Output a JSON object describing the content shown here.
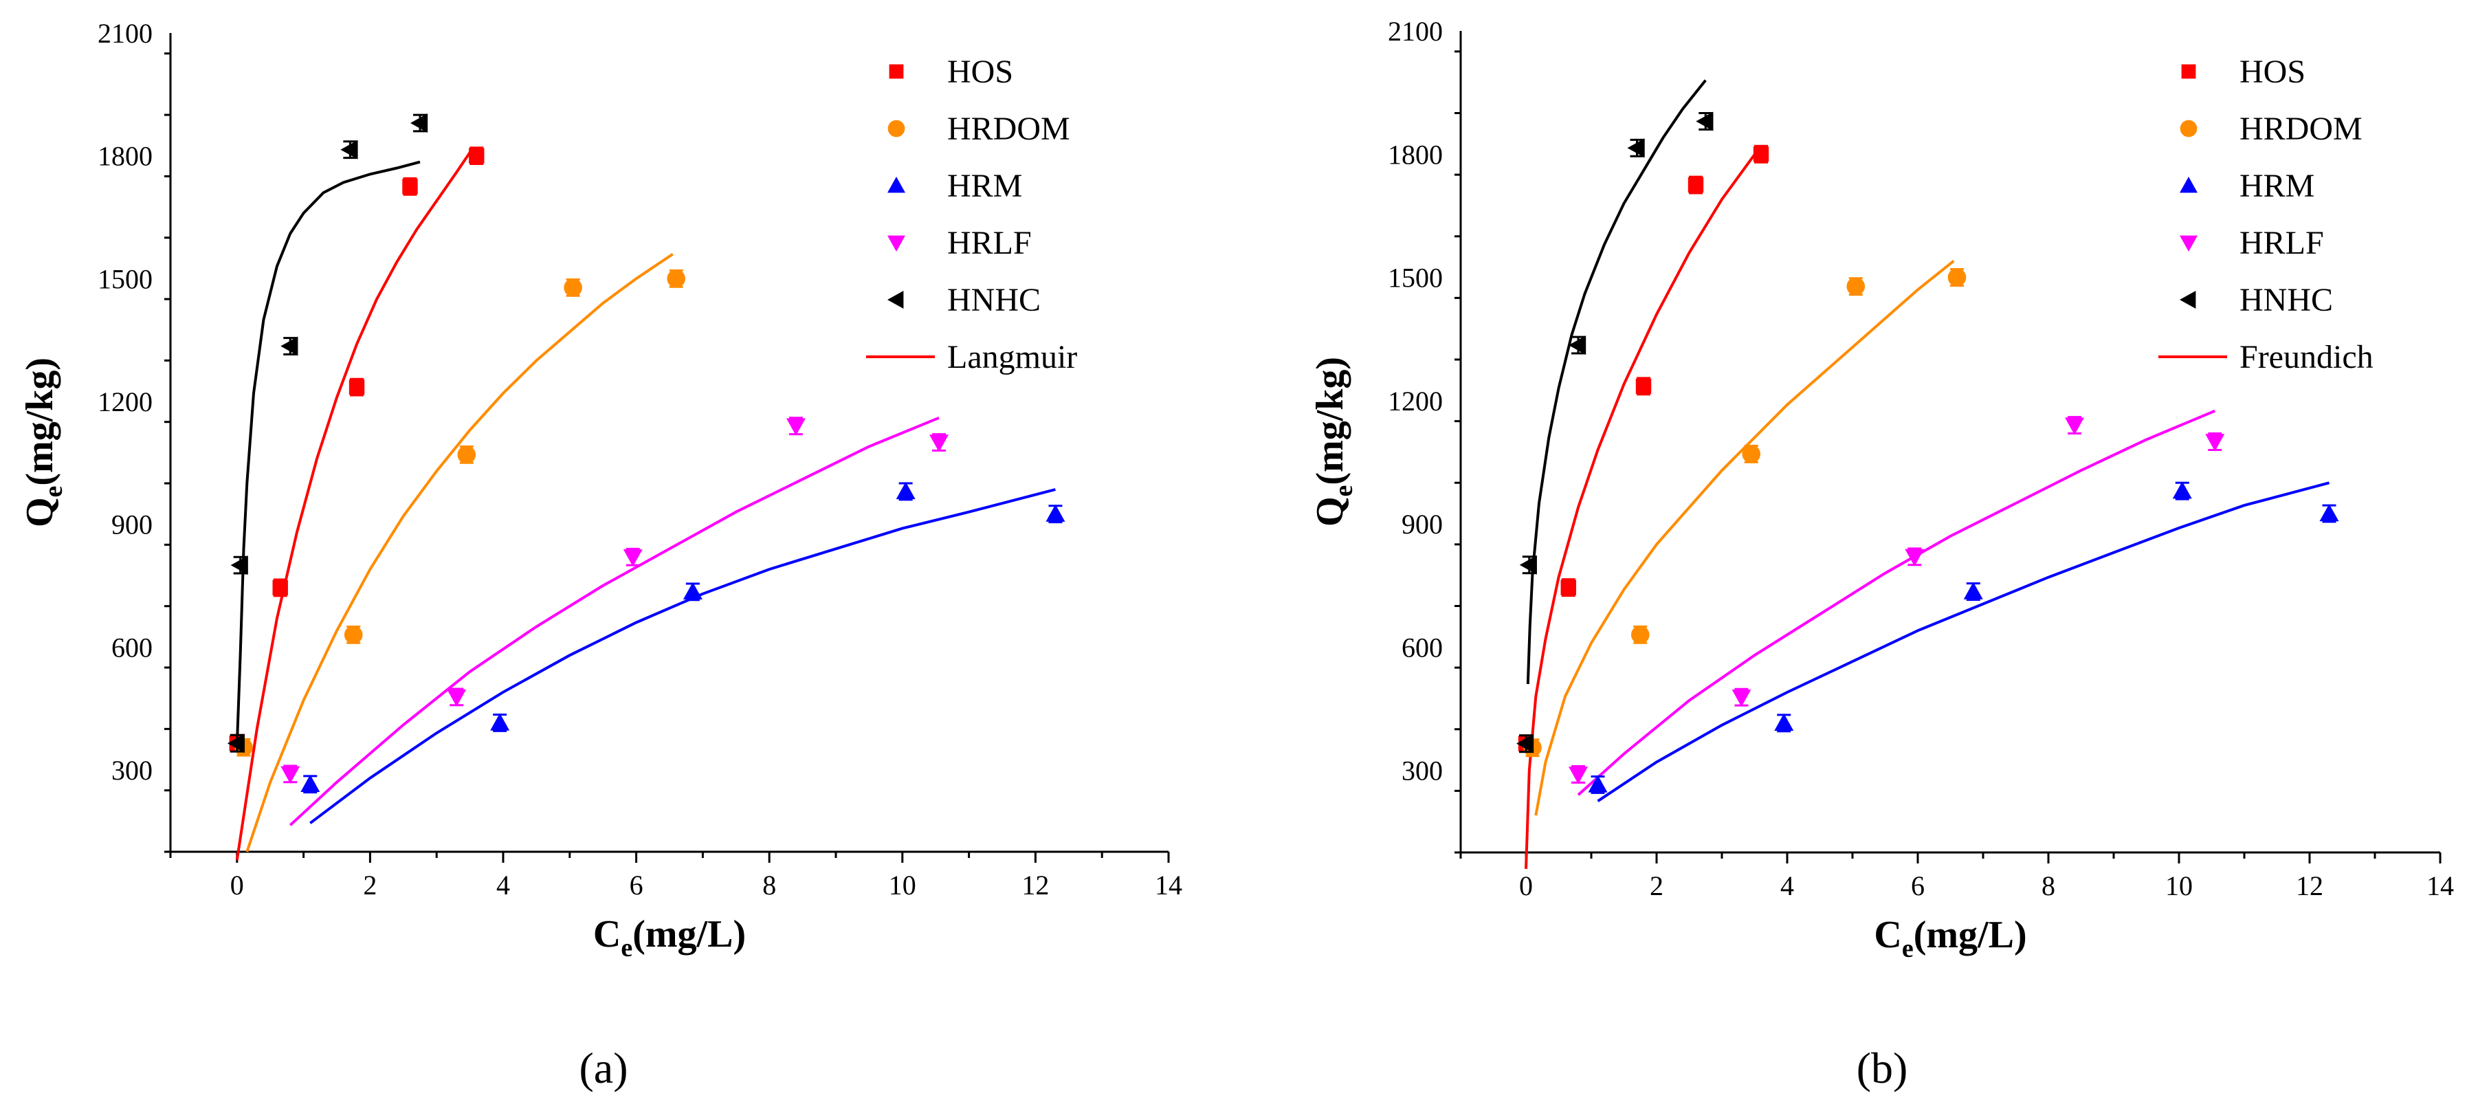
{
  "panels": [
    {
      "caption": "(a)",
      "fit_label": "Langmuir",
      "fit_color": "#ff0000"
    },
    {
      "caption": "(b)",
      "fit_label": "Freundich",
      "fit_color": "#ff0000"
    }
  ],
  "chart_data": [
    {
      "type": "scatter",
      "title": "",
      "xlabel_main": "C",
      "xlabel_sub": "e",
      "xlabel_unit": "(mg/L)",
      "ylabel_main": "Q",
      "ylabel_sub": "e",
      "ylabel_unit": "(mg/kg)",
      "xlim": [
        -1,
        14
      ],
      "ylim": [
        100,
        2100
      ],
      "xticks": [
        0,
        2,
        4,
        6,
        8,
        10,
        12,
        14
      ],
      "yticks": [
        300,
        600,
        900,
        1200,
        1500,
        1800,
        2100
      ],
      "legend_position": "top-right",
      "series": [
        {
          "name": "HOS",
          "color": "#ff0000",
          "marker": "square",
          "x": [
            0.0,
            0.65,
            1.8,
            2.6,
            3.6
          ],
          "y": [
            365,
            745,
            1235,
            1725,
            1800
          ],
          "err": [
            20,
            20,
            20,
            20,
            20
          ],
          "fit_x": [
            0.0,
            0.3,
            0.6,
            0.9,
            1.2,
            1.5,
            1.8,
            2.1,
            2.4,
            2.7,
            3.0,
            3.3,
            3.55
          ],
          "fit_y": [
            80,
            400,
            670,
            880,
            1060,
            1210,
            1340,
            1450,
            1540,
            1620,
            1690,
            1760,
            1820
          ]
        },
        {
          "name": "HRDOM",
          "color": "#ff8c00",
          "marker": "circle",
          "x": [
            0.1,
            1.75,
            3.45,
            5.05,
            6.6
          ],
          "y": [
            355,
            630,
            1070,
            1478,
            1500
          ],
          "err": [
            20,
            20,
            20,
            20,
            20
          ],
          "fit_x": [
            0.15,
            0.5,
            1.0,
            1.5,
            2.0,
            2.5,
            3.0,
            3.5,
            4.0,
            4.5,
            5.0,
            5.5,
            6.0,
            6.55
          ],
          "fit_y": [
            100,
            270,
            470,
            640,
            790,
            920,
            1030,
            1130,
            1220,
            1300,
            1370,
            1440,
            1500,
            1560
          ]
        },
        {
          "name": "HRM",
          "color": "#0000ff",
          "marker": "triangle-up",
          "x": [
            1.1,
            3.95,
            6.85,
            10.05,
            12.3
          ],
          "y": [
            265,
            415,
            735,
            980,
            925
          ],
          "err": [
            20,
            20,
            20,
            20,
            20
          ],
          "fit_x": [
            1.1,
            2.0,
            3.0,
            4.0,
            5.0,
            6.0,
            7.0,
            8.0,
            9.0,
            10.0,
            11.0,
            12.3
          ],
          "fit_y": [
            170,
            280,
            390,
            490,
            580,
            660,
            730,
            790,
            840,
            890,
            930,
            985
          ]
        },
        {
          "name": "HRLF",
          "color": "#ff00ff",
          "marker": "triangle-down",
          "x": [
            0.8,
            3.3,
            5.95,
            8.4,
            10.55
          ],
          "y": [
            290,
            478,
            820,
            1140,
            1100
          ],
          "err": [
            20,
            20,
            20,
            20,
            20
          ],
          "fit_x": [
            0.8,
            1.5,
            2.5,
            3.5,
            4.5,
            5.5,
            6.5,
            7.5,
            8.5,
            9.5,
            10.55
          ],
          "fit_y": [
            165,
            270,
            410,
            540,
            650,
            750,
            840,
            930,
            1010,
            1090,
            1160
          ]
        },
        {
          "name": "HNHC",
          "color": "#000000",
          "marker": "triangle-left",
          "x": [
            0.0,
            0.05,
            0.8,
            1.7,
            2.75
          ],
          "y": [
            365,
            800,
            1335,
            1815,
            1880
          ],
          "err": [
            20,
            20,
            20,
            20,
            20
          ],
          "fit_x": [
            0.0,
            0.05,
            0.1,
            0.15,
            0.25,
            0.4,
            0.6,
            0.8,
            1.0,
            1.3,
            1.6,
            2.0,
            2.4,
            2.75
          ],
          "fit_y": [
            360,
            580,
            840,
            1000,
            1220,
            1400,
            1530,
            1610,
            1660,
            1710,
            1735,
            1755,
            1770,
            1785
          ]
        }
      ]
    },
    {
      "type": "scatter",
      "title": "",
      "xlabel_main": "C",
      "xlabel_sub": "e",
      "xlabel_unit": "(mg/L)",
      "ylabel_main": "Q",
      "ylabel_sub": "e",
      "ylabel_unit": "(mg/kg)",
      "xlim": [
        -1,
        14
      ],
      "ylim": [
        100,
        2100
      ],
      "xticks": [
        0,
        2,
        4,
        6,
        8,
        10,
        12,
        14
      ],
      "yticks": [
        300,
        600,
        900,
        1200,
        1500,
        1800,
        2100
      ],
      "legend_position": "top-right",
      "series": [
        {
          "name": "HOS",
          "color": "#ff0000",
          "marker": "square",
          "x": [
            0.0,
            0.65,
            1.8,
            2.6,
            3.6
          ],
          "y": [
            365,
            745,
            1235,
            1725,
            1800
          ],
          "err": [
            20,
            20,
            20,
            20,
            20
          ],
          "fit_x": [
            0.0,
            0.05,
            0.15,
            0.3,
            0.5,
            0.8,
            1.1,
            1.5,
            2.0,
            2.5,
            3.0,
            3.55
          ],
          "fit_y": [
            60,
            300,
            480,
            620,
            770,
            940,
            1080,
            1240,
            1410,
            1560,
            1690,
            1810
          ]
        },
        {
          "name": "HRDOM",
          "color": "#ff8c00",
          "marker": "circle",
          "x": [
            0.1,
            1.75,
            3.45,
            5.05,
            6.6
          ],
          "y": [
            355,
            630,
            1070,
            1478,
            1500
          ],
          "err": [
            20,
            20,
            20,
            20,
            20
          ],
          "fit_x": [
            0.15,
            0.3,
            0.6,
            1.0,
            1.5,
            2.0,
            2.5,
            3.0,
            3.5,
            4.0,
            4.5,
            5.0,
            5.5,
            6.0,
            6.55
          ],
          "fit_y": [
            190,
            320,
            480,
            610,
            740,
            850,
            940,
            1030,
            1110,
            1190,
            1260,
            1330,
            1400,
            1470,
            1540
          ]
        },
        {
          "name": "HRM",
          "color": "#0000ff",
          "marker": "triangle-up",
          "x": [
            1.1,
            3.95,
            6.85,
            10.05,
            12.3
          ],
          "y": [
            265,
            415,
            735,
            980,
            925
          ],
          "err": [
            20,
            20,
            20,
            20,
            20
          ],
          "fit_x": [
            1.1,
            2.0,
            3.0,
            4.0,
            5.0,
            6.0,
            7.0,
            8.0,
            9.0,
            10.0,
            11.0,
            12.3
          ],
          "fit_y": [
            225,
            320,
            410,
            490,
            565,
            640,
            705,
            770,
            830,
            890,
            945,
            1000
          ]
        },
        {
          "name": "HRLF",
          "color": "#ff00ff",
          "marker": "triangle-down",
          "x": [
            0.8,
            3.3,
            5.95,
            8.4,
            10.55
          ],
          "y": [
            290,
            478,
            820,
            1140,
            1100
          ],
          "err": [
            20,
            20,
            20,
            20,
            20
          ],
          "fit_x": [
            0.8,
            1.5,
            2.5,
            3.5,
            4.5,
            5.5,
            6.5,
            7.5,
            8.5,
            9.5,
            10.55
          ],
          "fit_y": [
            240,
            340,
            470,
            580,
            680,
            780,
            870,
            950,
            1030,
            1105,
            1175
          ]
        },
        {
          "name": "HNHC",
          "color": "#000000",
          "marker": "triangle-left",
          "x": [
            0.0,
            0.05,
            0.8,
            1.7,
            2.75
          ],
          "y": [
            365,
            800,
            1335,
            1815,
            1880
          ],
          "err": [
            20,
            20,
            20,
            20,
            20
          ],
          "fit_x": [
            0.03,
            0.06,
            0.1,
            0.2,
            0.35,
            0.5,
            0.7,
            0.9,
            1.2,
            1.5,
            1.8,
            2.1,
            2.4,
            2.75
          ],
          "fit_y": [
            510,
            650,
            780,
            950,
            1110,
            1230,
            1360,
            1460,
            1580,
            1680,
            1760,
            1840,
            1910,
            1980
          ]
        }
      ]
    }
  ]
}
